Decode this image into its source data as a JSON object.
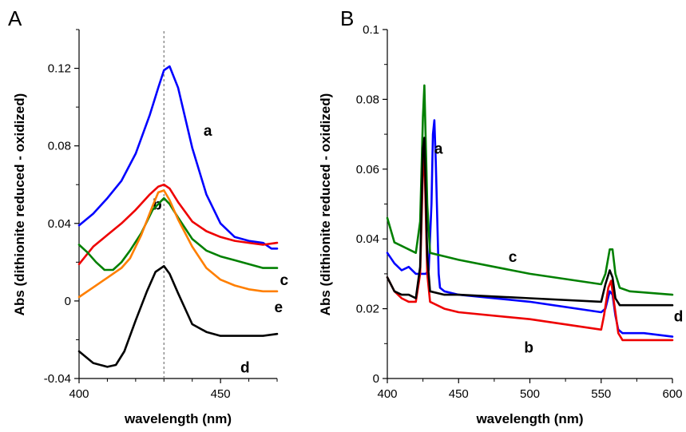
{
  "chart_data": [
    {
      "panel": "A",
      "type": "line",
      "title": "",
      "xlabel": "wavelength (nm)",
      "ylabel": "Abs (dithionite reduced - oxidized)",
      "xlim": [
        400,
        470
      ],
      "ylim": [
        -0.04,
        0.14
      ],
      "xticks": [
        400,
        450
      ],
      "xtick_labels": [
        "400",
        "450"
      ],
      "yticks": [
        -0.04,
        0,
        0.04,
        0.08,
        0.12
      ],
      "ytick_labels": [
        "-0.04",
        "0",
        "0.04",
        "0.08",
        "0.12"
      ],
      "grid": false,
      "reference_line_x": 430,
      "series": [
        {
          "name": "a",
          "color": "#0000ff",
          "x": [
            400,
            405,
            410,
            415,
            420,
            425,
            428,
            430,
            432,
            435,
            440,
            445,
            450,
            455,
            460,
            465,
            468,
            470
          ],
          "values": [
            0.039,
            0.045,
            0.053,
            0.062,
            0.076,
            0.096,
            0.11,
            0.119,
            0.121,
            0.11,
            0.079,
            0.055,
            0.04,
            0.033,
            0.031,
            0.03,
            0.027,
            0.027
          ],
          "label_at": [
            444,
            0.088
          ]
        },
        {
          "name": "b",
          "color": "#ee0000",
          "x": [
            400,
            405,
            410,
            415,
            420,
            425,
            428,
            430,
            432,
            435,
            440,
            445,
            450,
            455,
            460,
            465,
            470
          ],
          "values": [
            0.019,
            0.028,
            0.034,
            0.04,
            0.047,
            0.055,
            0.059,
            0.06,
            0.058,
            0.051,
            0.041,
            0.036,
            0.033,
            0.031,
            0.03,
            0.029,
            0.03
          ],
          "label_at": [
            426,
            0.05
          ]
        },
        {
          "name": "c",
          "color": "#008000",
          "x": [
            400,
            403,
            406,
            409,
            412,
            415,
            418,
            422,
            426,
            430,
            432,
            435,
            440,
            445,
            450,
            455,
            460,
            465,
            470
          ],
          "values": [
            0.029,
            0.025,
            0.02,
            0.016,
            0.016,
            0.02,
            0.026,
            0.035,
            0.047,
            0.053,
            0.05,
            0.043,
            0.032,
            0.026,
            0.023,
            0.021,
            0.019,
            0.017,
            0.017
          ],
          "label_at": [
            471,
            0.011
          ]
        },
        {
          "name": "d",
          "color": "#000000",
          "x": [
            400,
            405,
            410,
            413,
            416,
            420,
            424,
            427,
            430,
            432,
            435,
            440,
            445,
            450,
            455,
            460,
            465,
            470
          ],
          "values": [
            -0.026,
            -0.032,
            -0.034,
            -0.033,
            -0.026,
            -0.01,
            0.005,
            0.015,
            0.018,
            0.014,
            0.004,
            -0.012,
            -0.016,
            -0.018,
            -0.018,
            -0.018,
            -0.018,
            -0.017
          ],
          "label_at": [
            457,
            -0.034
          ]
        },
        {
          "name": "e",
          "color": "#ff7f00",
          "x": [
            400,
            405,
            410,
            415,
            418,
            422,
            426,
            428,
            430,
            432,
            435,
            440,
            445,
            450,
            455,
            460,
            465,
            470
          ],
          "values": [
            0.002,
            0.007,
            0.012,
            0.017,
            0.022,
            0.034,
            0.049,
            0.056,
            0.057,
            0.052,
            0.042,
            0.028,
            0.017,
            0.011,
            0.008,
            0.006,
            0.005,
            0.005
          ],
          "label_at": [
            469,
            -0.003
          ]
        }
      ]
    },
    {
      "panel": "B",
      "type": "line",
      "title": "",
      "xlabel": "wavelength (nm)",
      "ylabel": "Abs (dithionite reduced - oxidized)",
      "xlim": [
        400,
        600
      ],
      "ylim": [
        0,
        0.1
      ],
      "xticks": [
        400,
        450,
        500,
        550,
        600
      ],
      "xtick_labels": [
        "400",
        "450",
        "500",
        "550",
        "600"
      ],
      "yticks": [
        0,
        0.02,
        0.04,
        0.06,
        0.08,
        0.1
      ],
      "ytick_labels": [
        "0",
        "0.02",
        "0.04",
        "0.06",
        "0.08",
        "0.1"
      ],
      "grid": false,
      "series": [
        {
          "name": "a",
          "color": "#0000ff",
          "x": [
            400,
            405,
            410,
            415,
            420,
            424,
            427,
            429,
            431,
            432,
            433,
            434,
            436,
            437,
            440,
            450,
            500,
            550,
            553,
            556,
            558,
            560,
            562,
            565,
            580,
            600
          ],
          "values": [
            0.036,
            0.033,
            0.031,
            0.032,
            0.03,
            0.03,
            0.03,
            0.031,
            0.05,
            0.07,
            0.074,
            0.062,
            0.03,
            0.026,
            0.025,
            0.024,
            0.022,
            0.019,
            0.02,
            0.025,
            0.024,
            0.018,
            0.014,
            0.013,
            0.013,
            0.012
          ],
          "label_at": [
            433,
            0.066
          ]
        },
        {
          "name": "b",
          "color": "#ee0000",
          "x": [
            400,
            405,
            410,
            415,
            420,
            423,
            425,
            426,
            428,
            430,
            440,
            450,
            500,
            550,
            552,
            555,
            557,
            559,
            562,
            565,
            580,
            600
          ],
          "values": [
            0.029,
            0.025,
            0.023,
            0.022,
            0.022,
            0.03,
            0.06,
            0.064,
            0.03,
            0.022,
            0.02,
            0.019,
            0.017,
            0.014,
            0.018,
            0.026,
            0.028,
            0.022,
            0.013,
            0.011,
            0.011,
            0.011
          ],
          "label_at": [
            496,
            0.009
          ]
        },
        {
          "name": "c",
          "color": "#008000",
          "x": [
            400,
            405,
            410,
            415,
            420,
            423,
            425,
            426,
            428,
            430,
            440,
            450,
            500,
            550,
            553,
            556,
            558,
            560,
            563,
            570,
            600
          ],
          "values": [
            0.046,
            0.039,
            0.038,
            0.037,
            0.036,
            0.045,
            0.075,
            0.084,
            0.05,
            0.036,
            0.035,
            0.034,
            0.03,
            0.027,
            0.03,
            0.037,
            0.037,
            0.03,
            0.026,
            0.025,
            0.024
          ],
          "label_at": [
            485,
            0.035
          ]
        },
        {
          "name": "d",
          "color": "#000000",
          "x": [
            400,
            405,
            410,
            415,
            420,
            423,
            425,
            426,
            428,
            430,
            440,
            450,
            500,
            550,
            553,
            556,
            558,
            560,
            563,
            570,
            600
          ],
          "values": [
            0.029,
            0.025,
            0.024,
            0.024,
            0.023,
            0.032,
            0.066,
            0.069,
            0.035,
            0.025,
            0.024,
            0.024,
            0.023,
            0.022,
            0.027,
            0.031,
            0.029,
            0.023,
            0.021,
            0.021,
            0.021
          ],
          "label_at": [
            601,
            0.018
          ]
        }
      ]
    }
  ],
  "panels": {
    "a": {
      "letter": "A"
    },
    "b": {
      "letter": "B"
    }
  }
}
